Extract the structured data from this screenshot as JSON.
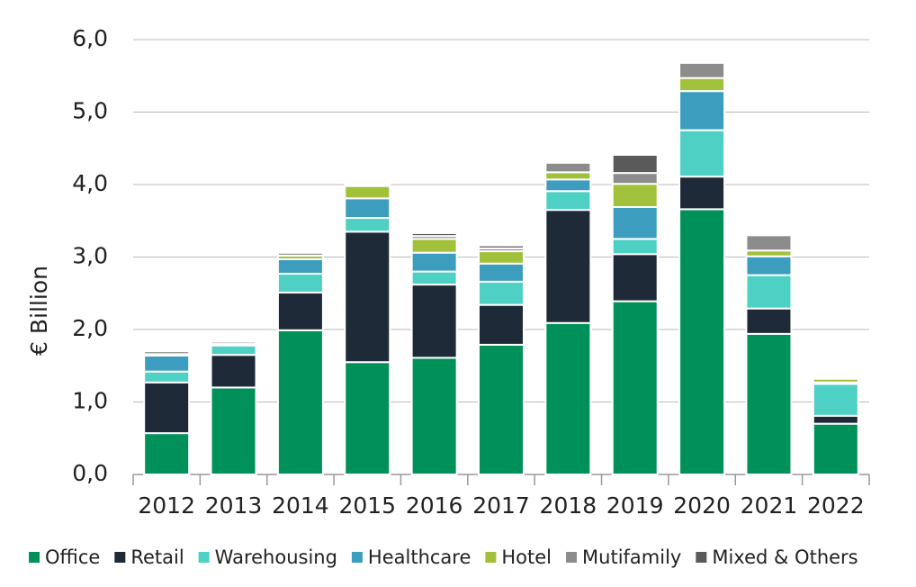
{
  "chart_data": {
    "type": "stacked_bar",
    "y_label": "€ Billion",
    "categories": [
      "2012",
      "2013",
      "2014",
      "2015",
      "2016",
      "2017",
      "2018",
      "2019",
      "2020",
      "2021",
      "2022"
    ],
    "series": [
      {
        "name": "Office",
        "color": "#00915a",
        "values": [
          0.57,
          1.2,
          1.99,
          1.55,
          1.61,
          1.79,
          2.09,
          2.39,
          3.66,
          1.94,
          0.7
        ]
      },
      {
        "name": "Retail",
        "color": "#1e2a38",
        "values": [
          0.7,
          0.45,
          0.52,
          1.8,
          1.01,
          0.55,
          1.56,
          0.65,
          0.45,
          0.35,
          0.11
        ]
      },
      {
        "name": "Warehousing",
        "color": "#4fd0c4",
        "values": [
          0.15,
          0.13,
          0.26,
          0.19,
          0.18,
          0.32,
          0.26,
          0.21,
          0.64,
          0.46,
          0.44
        ]
      },
      {
        "name": "Healthcare",
        "color": "#3d9dbf",
        "values": [
          0.22,
          0,
          0.2,
          0.27,
          0.26,
          0.25,
          0.16,
          0.44,
          0.54,
          0.26,
          0.02
        ]
      },
      {
        "name": "Hotel",
        "color": "#a2c13a",
        "values": [
          0.02,
          0.02,
          0.05,
          0.17,
          0.19,
          0.17,
          0.1,
          0.32,
          0.18,
          0.08,
          0.05
        ]
      },
      {
        "name": "Mutifamily",
        "color": "#8c8c8c",
        "values": [
          0.04,
          0.03,
          0.04,
          0.02,
          0.04,
          0.04,
          0.13,
          0.15,
          0.21,
          0.21,
          0
        ]
      },
      {
        "name": "Mixed & Others",
        "color": "#5a5a5a",
        "values": [
          0,
          0,
          0.02,
          0,
          0.04,
          0.04,
          0,
          0.25,
          0.02,
          0,
          0
        ]
      }
    ],
    "ylim": [
      0,
      6
    ],
    "yticks": [
      {
        "value": 0,
        "label": "0,0"
      },
      {
        "value": 1,
        "label": "1,0"
      },
      {
        "value": 2,
        "label": "2,0"
      },
      {
        "value": 3,
        "label": "3,0"
      },
      {
        "value": 4,
        "label": "4,0"
      },
      {
        "value": 5,
        "label": "5,0"
      },
      {
        "value": 6,
        "label": "6,0"
      }
    ],
    "grid": true,
    "legend": "bottom"
  }
}
